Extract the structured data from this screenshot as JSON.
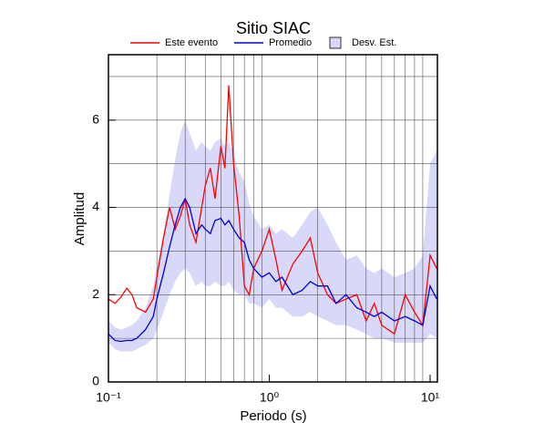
{
  "chart_data": {
    "type": "line",
    "title": "Sitio SIAC",
    "x_label": "Periodo (s)",
    "y_label": "Amplitud",
    "log_x": true,
    "xlim": [
      0.1,
      11.1
    ],
    "ylim": [
      0,
      7.5
    ],
    "xticks": [
      {
        "value": 0.1,
        "label": "10⁻¹"
      },
      {
        "value": 1,
        "label": "10⁰"
      },
      {
        "value": 10,
        "label": "10¹"
      }
    ],
    "yticks": [
      0,
      2,
      4,
      6
    ],
    "xgrid": [
      0.2,
      0.3,
      0.4,
      0.5,
      0.6,
      0.7,
      0.8,
      0.9,
      2,
      3,
      4,
      5,
      6,
      7,
      8,
      9
    ],
    "ygrid": [
      1,
      2,
      3,
      4,
      5,
      6,
      7
    ],
    "x": [
      0.1,
      0.11,
      0.12,
      0.13,
      0.14,
      0.15,
      0.17,
      0.19,
      0.2,
      0.22,
      0.24,
      0.26,
      0.28,
      0.3,
      0.32,
      0.35,
      0.38,
      0.4,
      0.43,
      0.46,
      0.5,
      0.53,
      0.56,
      0.6,
      0.65,
      0.7,
      0.75,
      0.8,
      0.9,
      1.0,
      1.1,
      1.2,
      1.4,
      1.6,
      1.8,
      2.0,
      2.3,
      2.6,
      3.0,
      3.5,
      4.0,
      4.5,
      5.0,
      6.0,
      7.0,
      8.0,
      9.0,
      10.0,
      11.0
    ],
    "band": {
      "name": "Desv. Est.",
      "color": "#d8d8f8",
      "upper": [
        1.4,
        1.25,
        1.2,
        1.25,
        1.3,
        1.4,
        1.7,
        2.2,
        2.7,
        3.4,
        4.3,
        5.1,
        5.7,
        6.0,
        5.7,
        5.3,
        5.5,
        5.4,
        5.3,
        5.5,
        5.6,
        5.4,
        5.5,
        5.2,
        4.8,
        4.6,
        4.1,
        3.8,
        3.5,
        3.6,
        3.4,
        3.5,
        3.3,
        3.6,
        3.9,
        4.0,
        3.6,
        3.2,
        2.8,
        2.9,
        2.6,
        2.5,
        2.6,
        2.4,
        2.5,
        2.6,
        2.9,
        5.0,
        5.3
      ],
      "lower": [
        0.9,
        0.75,
        0.7,
        0.7,
        0.7,
        0.75,
        0.85,
        1.0,
        1.2,
        1.6,
        2.0,
        2.3,
        2.5,
        2.6,
        2.5,
        2.2,
        2.3,
        2.2,
        2.2,
        2.3,
        2.2,
        2.2,
        2.3,
        2.1,
        2.0,
        2.0,
        1.8,
        1.8,
        1.7,
        1.9,
        1.7,
        1.7,
        1.5,
        1.5,
        1.6,
        1.5,
        1.4,
        1.3,
        1.3,
        1.2,
        1.1,
        1.0,
        1.0,
        0.9,
        0.9,
        0.9,
        0.9,
        1.1,
        1.0
      ]
    },
    "series": [
      {
        "name": "Este evento",
        "color": "#ff0000",
        "values": [
          1.9,
          1.8,
          1.95,
          2.15,
          2.0,
          1.7,
          1.6,
          1.9,
          2.4,
          3.3,
          4.0,
          3.5,
          3.8,
          4.2,
          3.6,
          3.2,
          4.0,
          4.5,
          4.9,
          4.2,
          5.4,
          4.9,
          6.8,
          5.0,
          3.8,
          2.2,
          2.0,
          2.6,
          3.0,
          3.5,
          2.8,
          2.1,
          2.7,
          3.0,
          3.3,
          2.5,
          2.0,
          1.8,
          1.9,
          2.0,
          1.4,
          1.8,
          1.3,
          1.1,
          2.0,
          1.6,
          1.3,
          2.9,
          2.6
        ]
      },
      {
        "name": "Promedio",
        "color": "#0000dd",
        "values": [
          1.1,
          0.95,
          0.93,
          0.95,
          0.95,
          1.0,
          1.2,
          1.5,
          1.9,
          2.5,
          3.1,
          3.6,
          4.0,
          4.2,
          4.0,
          3.4,
          3.6,
          3.5,
          3.4,
          3.7,
          3.75,
          3.6,
          3.7,
          3.5,
          3.3,
          3.2,
          2.8,
          2.6,
          2.4,
          2.5,
          2.3,
          2.4,
          2.0,
          2.1,
          2.3,
          2.2,
          2.2,
          1.8,
          2.0,
          1.7,
          1.6,
          1.5,
          1.6,
          1.4,
          1.5,
          1.4,
          1.3,
          2.2,
          1.9
        ]
      }
    ]
  }
}
